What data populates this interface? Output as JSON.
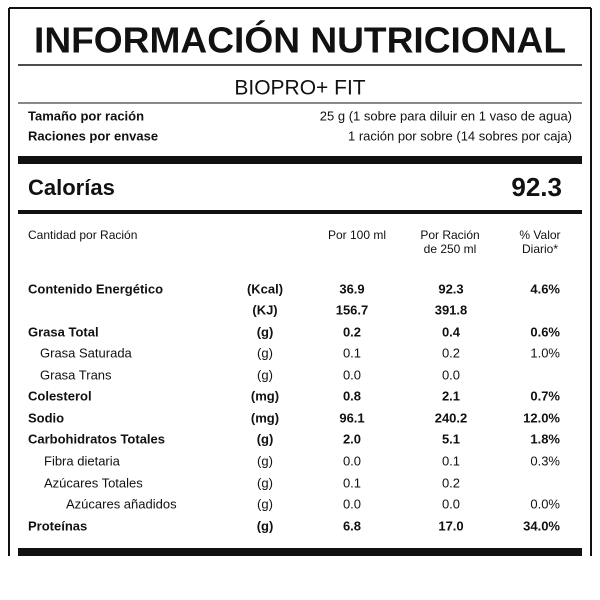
{
  "header": {
    "title": "INFORMACIÓN NUTRICIONAL",
    "product": "BIOPRO+ FIT"
  },
  "serving": [
    {
      "label": "Tamaño por ración",
      "value": "25 g (1 sobre para diluir en 1 vaso de agua)"
    },
    {
      "label": "Raciones por envase",
      "value": "1 ración por sobre (14 sobres por caja)"
    }
  ],
  "calories": {
    "label": "Calorías",
    "value": "92.3"
  },
  "table": {
    "columns": {
      "label": "Cantidad por Ración",
      "per_100": "Por 100 ml",
      "per_serving": [
        "Por Ración",
        "de 250 ml"
      ],
      "daily_value": [
        "% Valor",
        "Diario*"
      ]
    },
    "rows": [
      {
        "label": "Contenido Energético",
        "unit": "(Kcal)",
        "per_100": "36.9",
        "per_serving": "92.3",
        "daily_value": "4.6%"
      },
      {
        "unit": "(KJ)",
        "per_100": "156.7",
        "per_serving": "391.8"
      },
      {
        "label": "Grasa Total",
        "unit": "(g)",
        "per_100": "0.2",
        "per_serving": "0.4",
        "daily_value": "0.6%"
      },
      {
        "label": "Grasa Saturada",
        "unit": "(g)",
        "per_100": "0.1",
        "per_serving": "0.2",
        "daily_value": "1.0%"
      },
      {
        "label": "Grasa Trans",
        "unit": "(g)",
        "per_100": "0.0",
        "per_serving": "0.0"
      },
      {
        "label": "Colesterol",
        "unit": "(mg)",
        "per_100": "0.8",
        "per_serving": "2.1",
        "daily_value": "0.7%"
      },
      {
        "label": "Sodio",
        "unit": "(mg)",
        "per_100": "96.1",
        "per_serving": "240.2",
        "daily_value": "12.0%"
      },
      {
        "label": "Carbohidratos Totales",
        "unit": "(g)",
        "per_100": "2.0",
        "per_serving": "5.1",
        "daily_value": "1.8%"
      },
      {
        "label": "Fibra dietaria",
        "unit": "(g)",
        "per_100": "0.0",
        "per_serving": "0.1",
        "daily_value": "0.3%"
      },
      {
        "label": "Azúcares Totales",
        "unit": "(g)",
        "per_100": "0.1",
        "per_serving": "0.2"
      },
      {
        "label": "Azúcares añadidos",
        "unit": "(g)",
        "per_100": "0.0",
        "per_serving": "0.0",
        "daily_value": "0.0%"
      },
      {
        "label": "Proteínas",
        "unit": "(g)",
        "per_100": "6.8",
        "per_serving": "17.0",
        "daily_value": "34.0%"
      }
    ]
  }
}
